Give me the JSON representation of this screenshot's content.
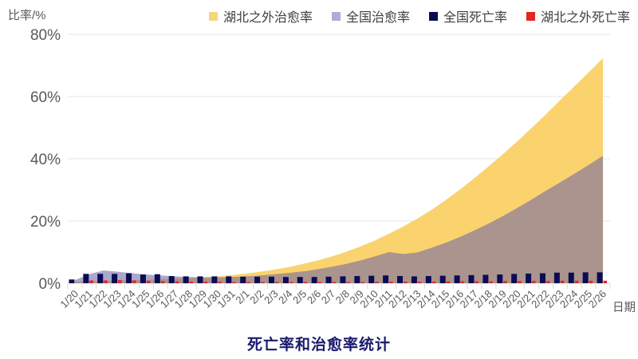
{
  "title": "死亡率和治愈率统计",
  "y_axis_unit": "比率/%",
  "chart_data": {
    "type": "area+bar combo",
    "title": "死亡率和治愈率统计",
    "xlabel": "日期",
    "ylabel": "比率/%",
    "ylim": [
      0,
      80
    ],
    "yticks": [
      0,
      20,
      40,
      60,
      80
    ],
    "ytick_suffix": "%",
    "grid": true,
    "legend_position": "top-right",
    "categories": [
      "1/20",
      "1/21",
      "1/22",
      "1/23",
      "1/24",
      "1/25",
      "1/26",
      "1/27",
      "1/28",
      "1/29",
      "1/30",
      "1/31",
      "2/1",
      "2/2",
      "2/3",
      "2/4",
      "2/5",
      "2/6",
      "2/7",
      "2/8",
      "2/9",
      "2/10",
      "2/11",
      "2/12",
      "2/13",
      "2/14",
      "2/15",
      "2/16",
      "2/17",
      "2/18",
      "2/19",
      "2/20",
      "2/21",
      "2/22",
      "2/23",
      "2/24",
      "2/25",
      "2/26"
    ],
    "series": [
      {
        "name": "湖北之外治愈率",
        "type": "area",
        "color": "#FAD36E",
        "opacity": 1,
        "swatch": "#F5D67A",
        "values": [
          0.5,
          0.7,
          0.8,
          0.9,
          1.0,
          1.1,
          1.3,
          1.5,
          1.7,
          1.9,
          2.2,
          2.6,
          3.1,
          3.7,
          4.4,
          5.2,
          6.2,
          7.3,
          8.6,
          10.1,
          11.8,
          13.7,
          15.9,
          18.2,
          20.8,
          23.6,
          26.8,
          30.2,
          33.8,
          37.6,
          41.5,
          45.6,
          49.9,
          54.3,
          58.8,
          63.3,
          67.8,
          72.3
        ]
      },
      {
        "name": "全国治愈率",
        "type": "area",
        "color": "#6B62A6",
        "opacity": 0.56,
        "swatch": "#B3ABD6",
        "values": [
          1.0,
          2.9,
          4.1,
          3.7,
          3.2,
          2.8,
          2.5,
          2.2,
          2.0,
          1.9,
          1.9,
          2.0,
          2.2,
          2.5,
          2.9,
          3.3,
          3.8,
          4.5,
          5.3,
          6.2,
          7.3,
          8.6,
          10.0,
          9.4,
          9.9,
          11.4,
          13.0,
          14.9,
          17.0,
          19.2,
          21.6,
          24.2,
          26.9,
          29.7,
          32.4,
          35.2,
          38.0,
          41.0
        ]
      },
      {
        "name": "全国死亡率",
        "type": "bar",
        "color": "#0C0C54",
        "opacity": 1,
        "swatch": "#0C0C54",
        "values": [
          1.2,
          3.0,
          3.0,
          3.0,
          3.2,
          2.8,
          2.9,
          2.3,
          2.2,
          2.2,
          2.2,
          2.2,
          2.1,
          2.1,
          2.1,
          2.0,
          2.0,
          2.0,
          2.1,
          2.2,
          2.3,
          2.4,
          2.5,
          2.3,
          2.2,
          2.3,
          2.4,
          2.5,
          2.6,
          2.7,
          2.8,
          3.0,
          3.1,
          3.2,
          3.4,
          3.4,
          3.5,
          3.5
        ]
      },
      {
        "name": "湖北之外死亡率",
        "type": "bar",
        "color": "#E5261F",
        "opacity": 1,
        "swatch": "#E5261F",
        "values": [
          0.0,
          0.9,
          0.9,
          1.0,
          0.9,
          0.8,
          0.7,
          0.6,
          0.5,
          0.5,
          0.5,
          0.4,
          0.4,
          0.4,
          0.4,
          0.4,
          0.4,
          0.4,
          0.4,
          0.4,
          0.4,
          0.5,
          0.5,
          0.5,
          0.5,
          0.5,
          0.6,
          0.6,
          0.6,
          0.6,
          0.7,
          0.7,
          0.7,
          0.7,
          0.8,
          0.8,
          0.8,
          0.8
        ]
      }
    ],
    "colors": {
      "grid_line": "#E4E4E4",
      "axis_line": "#D9D9D9",
      "tick_text": "#595959",
      "title_text": "#1A1A6E"
    }
  }
}
